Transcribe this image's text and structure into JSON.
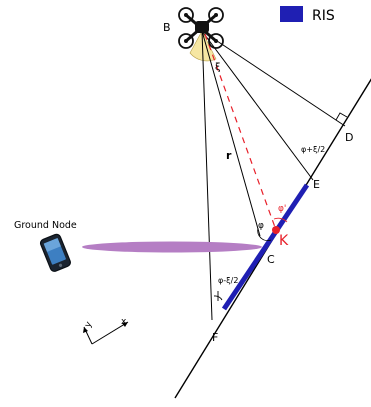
{
  "legend": {
    "label": "RIS",
    "color": "#1f1fb3"
  },
  "points": {
    "B": "B",
    "C": "C",
    "D": "D",
    "E": "E",
    "F": "F",
    "K": "K"
  },
  "labels": {
    "r": "r",
    "xi": "ξ",
    "phi": "φ",
    "phi_prime": "φ'",
    "phi_plus": "φ+ξ/2",
    "phi_minus": "φ-ξ/2",
    "ground_node": "Ground Node",
    "axis_x": "x",
    "axis_y": "y"
  },
  "colors": {
    "ris": "#1f1fb3",
    "reflection_point": "#e8202a",
    "dashed_line": "#e8202a",
    "ground_beam": "#b57ec4",
    "angle_fill": "#f6e7a3",
    "line": "#000000"
  },
  "icons": {
    "uav": "quadcopter-drone-icon",
    "ground_node": "mobile-phone-icon"
  }
}
